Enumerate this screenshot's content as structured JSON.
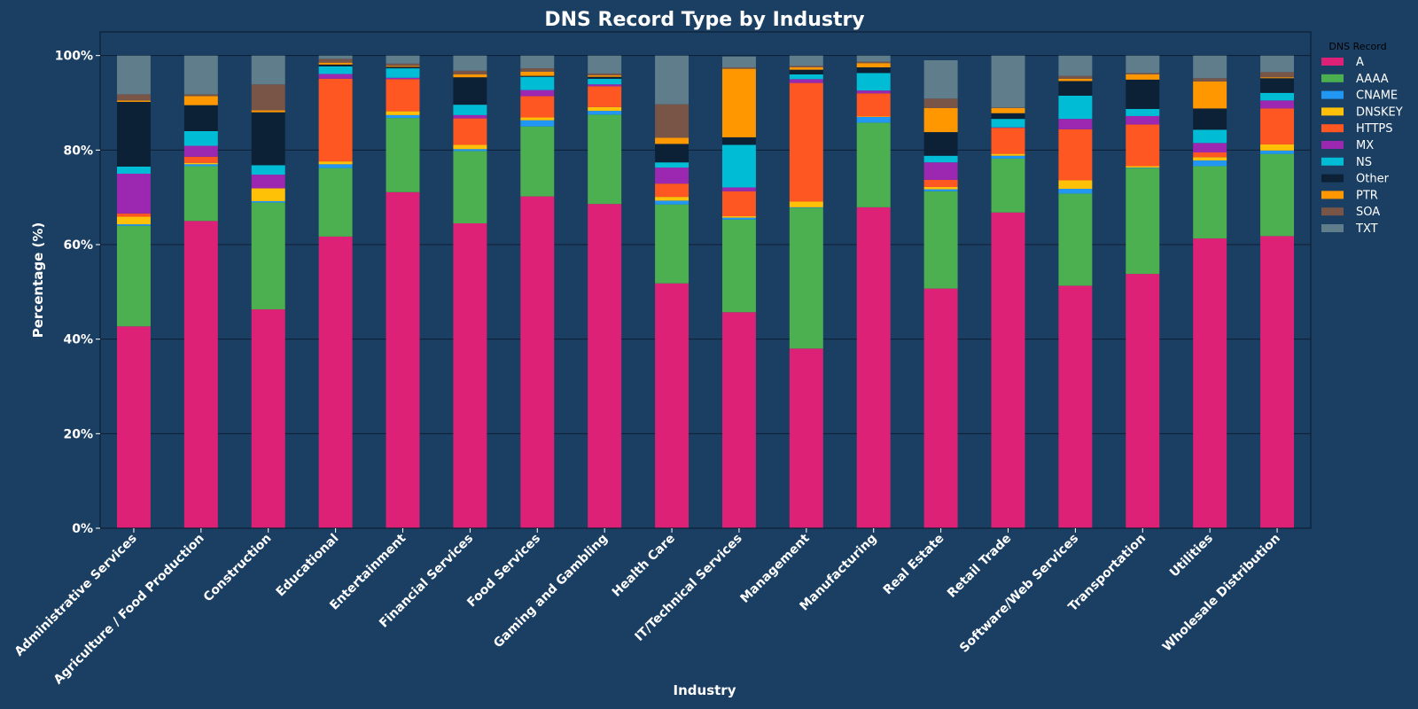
{
  "chart_data": {
    "type": "bar",
    "stacked": true,
    "title": "DNS Record Type by Industry",
    "xlabel": "Industry",
    "ylabel": "Percentage (%)",
    "ylim": [
      0,
      105
    ],
    "yticks": [
      "0%",
      "20%",
      "40%",
      "60%",
      "80%",
      "100%"
    ],
    "grid": "horizontal",
    "legend": {
      "title": "DNS Record",
      "position": "right"
    },
    "colors": {
      "background": "#1b3f63",
      "grid": "#0c1e33"
    },
    "categories": [
      "Administrative Services",
      "Agriculture / Food Production",
      "Construction",
      "Educational",
      "Entertainment",
      "Financial Services",
      "Food Services",
      "Gaming and Gambling",
      "Health Care",
      "IT/Technical Services",
      "Management",
      "Manufacturing",
      "Real Estate",
      "Retail Trade",
      "Software/Web Services",
      "Transportation",
      "Utilities",
      "Wholesale Distribution"
    ],
    "series": [
      {
        "name": "A",
        "color": "#dc2176",
        "values": [
          42.7,
          65.0,
          46.3,
          61.7,
          71.1,
          64.5,
          70.2,
          68.6,
          51.8,
          45.7,
          38.0,
          67.9,
          50.7,
          66.8,
          51.3,
          53.8,
          61.3,
          61.8
        ]
      },
      {
        "name": "AAAA",
        "color": "#4caf50",
        "values": [
          21.3,
          11.6,
          22.6,
          14.5,
          15.7,
          15.3,
          14.8,
          18.9,
          16.7,
          19.6,
          29.8,
          17.9,
          20.6,
          11.4,
          19.5,
          22.4,
          15.3,
          17.4
        ]
      },
      {
        "name": "CNAME",
        "color": "#2196f3",
        "values": [
          0.3,
          0.4,
          0.3,
          0.8,
          0.6,
          0.4,
          1.3,
          0.8,
          0.8,
          0.4,
          0.1,
          1.2,
          0.4,
          0.6,
          1.0,
          0.1,
          1.2,
          0.7
        ]
      },
      {
        "name": "DNSKEY",
        "color": "#ffc107",
        "values": [
          1.6,
          0.3,
          2.7,
          0.6,
          0.8,
          0.9,
          0.6,
          0.8,
          0.8,
          0.3,
          1.2,
          0.1,
          0.5,
          0.4,
          1.8,
          0.3,
          0.7,
          1.3
        ]
      },
      {
        "name": "HTTPS",
        "color": "#ff5722",
        "values": [
          0.7,
          1.3,
          0.0,
          17.5,
          6.8,
          5.6,
          4.5,
          4.4,
          2.8,
          5.3,
          25.1,
          4.9,
          1.5,
          5.5,
          10.8,
          8.8,
          1.0,
          7.6
        ]
      },
      {
        "name": "MX",
        "color": "#9c27b0",
        "values": [
          8.4,
          2.3,
          2.9,
          1.0,
          0.3,
          0.7,
          1.3,
          0.4,
          3.4,
          0.8,
          0.8,
          0.6,
          3.7,
          0.1,
          2.2,
          1.8,
          2.0,
          1.7
        ]
      },
      {
        "name": "NS",
        "color": "#00bcd4",
        "values": [
          1.5,
          3.1,
          2.0,
          1.6,
          2.0,
          2.2,
          2.8,
          1.2,
          1.1,
          9.0,
          1.0,
          3.7,
          1.4,
          1.8,
          4.9,
          1.5,
          2.8,
          1.6
        ]
      },
      {
        "name": "Other",
        "color": "#0d2136",
        "values": [
          13.7,
          5.5,
          11.2,
          0.4,
          0.3,
          5.8,
          0.2,
          0.4,
          3.9,
          1.6,
          1.0,
          1.2,
          5.0,
          1.2,
          3.1,
          6.2,
          4.5,
          3.1
        ]
      },
      {
        "name": "PTR",
        "color": "#ff9800",
        "values": [
          0.3,
          1.9,
          0.4,
          0.4,
          0.2,
          0.6,
          0.9,
          0.3,
          1.3,
          14.5,
          0.5,
          0.9,
          5.1,
          1.1,
          0.5,
          1.1,
          5.7,
          0.2
        ]
      },
      {
        "name": "SOA",
        "color": "#795548",
        "values": [
          1.3,
          0.4,
          5.5,
          0.8,
          0.5,
          0.8,
          0.7,
          0.4,
          7.1,
          0.3,
          0.3,
          0.3,
          2.0,
          0.1,
          0.6,
          0.3,
          0.7,
          1.1
        ]
      },
      {
        "name": "TXT",
        "color": "#607d8b",
        "values": [
          8.2,
          8.2,
          6.1,
          0.7,
          1.7,
          3.2,
          2.7,
          3.8,
          10.3,
          2.3,
          2.2,
          1.3,
          8.1,
          11.0,
          4.3,
          3.7,
          4.8,
          3.5
        ]
      }
    ]
  }
}
